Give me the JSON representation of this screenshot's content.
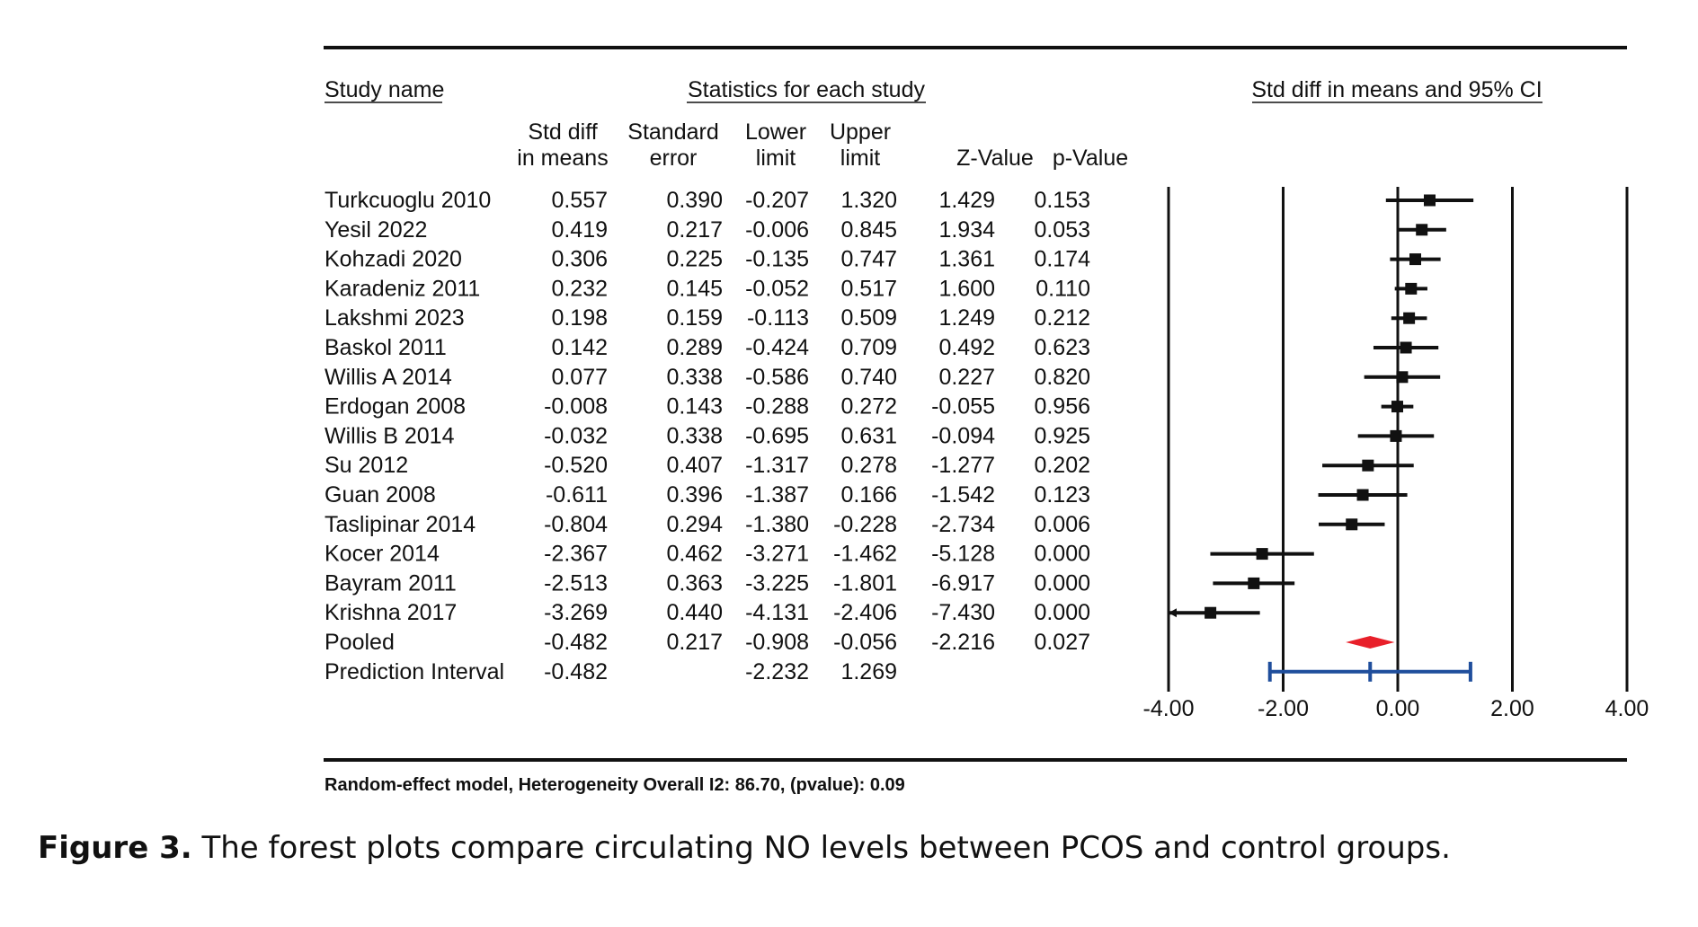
{
  "chart_data": {
    "type": "forest",
    "headers": {
      "study_name": "Study name",
      "statistics_group": "Statistics for each study",
      "ci_group": "Std diff in means and 95% CI",
      "columns": [
        [
          "Std diff",
          "in means"
        ],
        [
          "Standard",
          "error"
        ],
        [
          "Lower",
          "limit"
        ],
        [
          "Upper",
          "limit"
        ],
        [
          "",
          "Z-Value"
        ],
        [
          "",
          "p-Value"
        ]
      ]
    },
    "rows": [
      {
        "study": "Turkcuoglu 2010",
        "smd": 0.557,
        "se": 0.39,
        "lower": -0.207,
        "upper": 1.32,
        "z": 1.429,
        "p": 0.153,
        "display": [
          "0.557",
          "0.390",
          "-0.207",
          "1.320",
          "1.429",
          "0.153"
        ]
      },
      {
        "study": "Yesil 2022",
        "smd": 0.419,
        "se": 0.217,
        "lower": -0.006,
        "upper": 0.845,
        "z": 1.934,
        "p": 0.053,
        "display": [
          "0.419",
          "0.217",
          "-0.006",
          "0.845",
          "1.934",
          "0.053"
        ]
      },
      {
        "study": "Kohzadi 2020",
        "smd": 0.306,
        "se": 0.225,
        "lower": -0.135,
        "upper": 0.747,
        "z": 1.361,
        "p": 0.174,
        "display": [
          "0.306",
          "0.225",
          "-0.135",
          "0.747",
          "1.361",
          "0.174"
        ]
      },
      {
        "study": "Karadeniz 2011",
        "smd": 0.232,
        "se": 0.145,
        "lower": -0.052,
        "upper": 0.517,
        "z": 1.6,
        "p": 0.11,
        "display": [
          "0.232",
          "0.145",
          "-0.052",
          "0.517",
          "1.600",
          "0.110"
        ]
      },
      {
        "study": "Lakshmi 2023",
        "smd": 0.198,
        "se": 0.159,
        "lower": -0.113,
        "upper": 0.509,
        "z": 1.249,
        "p": 0.212,
        "display": [
          "0.198",
          "0.159",
          "-0.113",
          "0.509",
          "1.249",
          "0.212"
        ]
      },
      {
        "study": "Baskol 2011",
        "smd": 0.142,
        "se": 0.289,
        "lower": -0.424,
        "upper": 0.709,
        "z": 0.492,
        "p": 0.623,
        "display": [
          "0.142",
          "0.289",
          "-0.424",
          "0.709",
          "0.492",
          "0.623"
        ]
      },
      {
        "study": "Willis A 2014",
        "smd": 0.077,
        "se": 0.338,
        "lower": -0.586,
        "upper": 0.74,
        "z": 0.227,
        "p": 0.82,
        "display": [
          "0.077",
          "0.338",
          "-0.586",
          "0.740",
          "0.227",
          "0.820"
        ]
      },
      {
        "study": "Erdogan 2008",
        "smd": -0.008,
        "se": 0.143,
        "lower": -0.288,
        "upper": 0.272,
        "z": -0.055,
        "p": 0.956,
        "display": [
          "-0.008",
          "0.143",
          "-0.288",
          "0.272",
          "-0.055",
          "0.956"
        ]
      },
      {
        "study": "Willis B 2014",
        "smd": -0.032,
        "se": 0.338,
        "lower": -0.695,
        "upper": 0.631,
        "z": -0.094,
        "p": 0.925,
        "display": [
          "-0.032",
          "0.338",
          "-0.695",
          "0.631",
          "-0.094",
          "0.925"
        ]
      },
      {
        "study": "Su 2012",
        "smd": -0.52,
        "se": 0.407,
        "lower": -1.317,
        "upper": 0.278,
        "z": -1.277,
        "p": 0.202,
        "display": [
          "-0.520",
          "0.407",
          "-1.317",
          "0.278",
          "-1.277",
          "0.202"
        ]
      },
      {
        "study": "Guan 2008",
        "smd": -0.611,
        "se": 0.396,
        "lower": -1.387,
        "upper": 0.166,
        "z": -1.542,
        "p": 0.123,
        "display": [
          "-0.611",
          "0.396",
          "-1.387",
          "0.166",
          "-1.542",
          "0.123"
        ]
      },
      {
        "study": "Taslipinar 2014",
        "smd": -0.804,
        "se": 0.294,
        "lower": -1.38,
        "upper": -0.228,
        "z": -2.734,
        "p": 0.006,
        "display": [
          "-0.804",
          "0.294",
          "-1.380",
          "-0.228",
          "-2.734",
          "0.006"
        ]
      },
      {
        "study": "Kocer 2014",
        "smd": -2.367,
        "se": 0.462,
        "lower": -3.271,
        "upper": -1.462,
        "z": -5.128,
        "p": 0.0,
        "display": [
          "-2.367",
          "0.462",
          "-3.271",
          "-1.462",
          "-5.128",
          "0.000"
        ]
      },
      {
        "study": "Bayram 2011",
        "smd": -2.513,
        "se": 0.363,
        "lower": -3.225,
        "upper": -1.801,
        "z": -6.917,
        "p": 0.0,
        "display": [
          "-2.513",
          "0.363",
          "-3.225",
          "-1.801",
          "-6.917",
          "0.000"
        ]
      },
      {
        "study": "Krishna 2017",
        "smd": -3.269,
        "se": 0.44,
        "lower": -4.131,
        "upper": -2.406,
        "z": -7.43,
        "p": 0.0,
        "display": [
          "-3.269",
          "0.440",
          "-4.131",
          "-2.406",
          "-7.430",
          "0.000"
        ]
      }
    ],
    "pooled": {
      "label": "Pooled",
      "smd": -0.482,
      "se": 0.217,
      "lower": -0.908,
      "upper": -0.056,
      "z": -2.216,
      "p": 0.027,
      "display": [
        "-0.482",
        "0.217",
        "-0.908",
        "-0.056",
        "-2.216",
        "0.027"
      ],
      "color": "#e8202a"
    },
    "prediction_interval": {
      "label": "Prediction Interval",
      "smd": -0.482,
      "lower": -2.232,
      "upper": 1.269,
      "display": [
        "-0.482",
        "",
        "-2.232",
        "1.269",
        "",
        ""
      ],
      "color": "#1f4e9c"
    },
    "xlim": [
      -4,
      4
    ],
    "ticks": [
      -4,
      -2,
      0,
      2,
      4
    ],
    "tick_labels": [
      "-4.00",
      "-2.00",
      "0.00",
      "2.00",
      "4.00"
    ],
    "footnote": "Random-effect model,  Heterogeneity Overall I2: 86.70,   (pvalue): 0.09"
  },
  "caption": {
    "label": "Figure 3.",
    "text": " The forest plots compare circulating NO levels between PCOS and control groups."
  }
}
